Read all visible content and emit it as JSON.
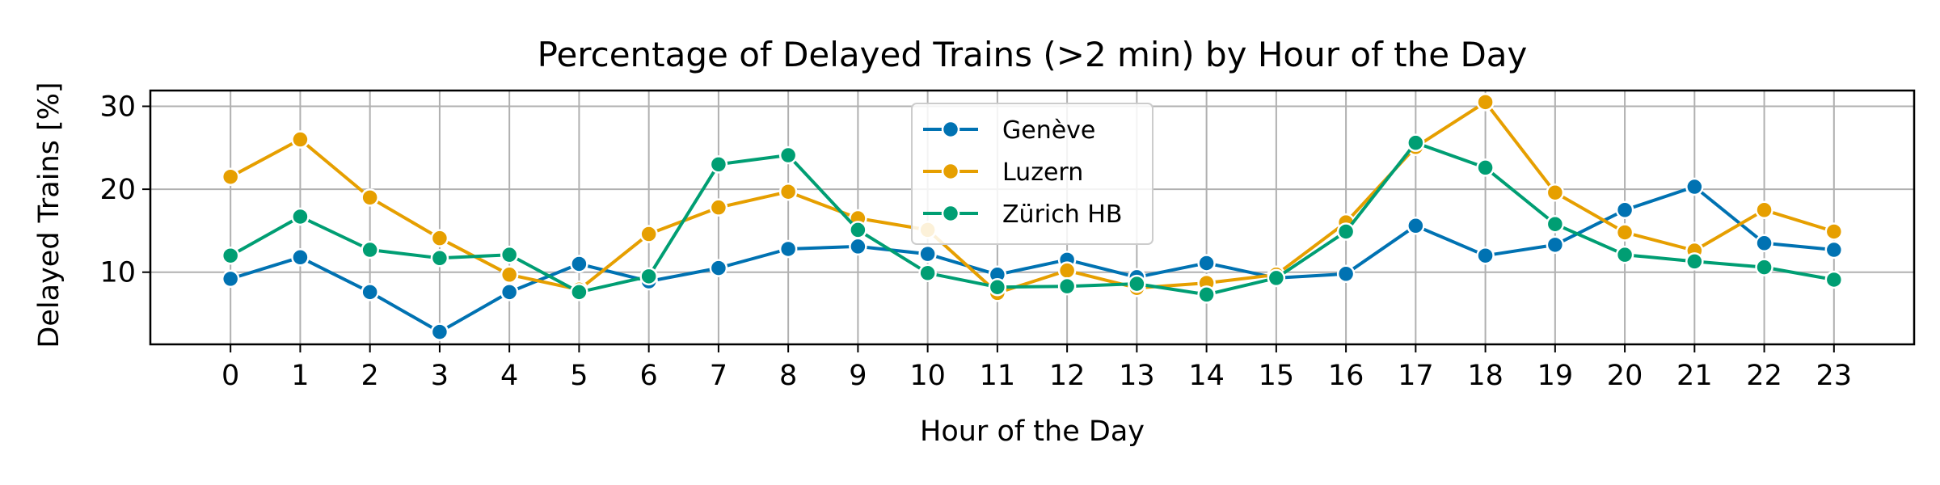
{
  "chart_data": {
    "type": "line",
    "title": "Percentage of Delayed Trains (>2 min) by Hour of the Day",
    "xlabel": "Hour of the Day",
    "ylabel": "Delayed Trains [%]",
    "x": [
      0,
      1,
      2,
      3,
      4,
      5,
      6,
      7,
      8,
      9,
      10,
      11,
      12,
      13,
      14,
      15,
      16,
      17,
      18,
      19,
      20,
      21,
      22,
      23
    ],
    "xlim": [
      -1.15,
      24.15
    ],
    "ylim": [
      1.3,
      31.9
    ],
    "yticks": [
      10,
      20,
      30
    ],
    "grid": true,
    "legend_position": "top-center",
    "series": [
      {
        "name": "Genève",
        "color": "#0072b2",
        "values": [
          9.2,
          11.8,
          7.6,
          2.8,
          7.6,
          11.0,
          8.9,
          10.5,
          12.8,
          13.1,
          12.2,
          9.7,
          11.5,
          9.4,
          11.1,
          9.3,
          9.8,
          15.6,
          12.0,
          13.3,
          17.5,
          20.3,
          13.5,
          12.7
        ]
      },
      {
        "name": "Luzern",
        "color": "#e69f00",
        "values": [
          21.5,
          26.0,
          19.0,
          14.1,
          9.7,
          7.9,
          14.6,
          17.8,
          19.7,
          16.5,
          15.1,
          7.5,
          10.2,
          8.1,
          8.7,
          9.7,
          16.0,
          25.1,
          30.5,
          19.6,
          14.8,
          12.6,
          17.5,
          14.9
        ]
      },
      {
        "name": "Zürich HB",
        "color": "#009e73",
        "values": [
          12.0,
          16.7,
          12.7,
          11.7,
          12.1,
          7.6,
          9.5,
          23.0,
          24.1,
          15.1,
          9.9,
          8.2,
          8.3,
          8.6,
          7.3,
          9.3,
          14.9,
          25.6,
          22.6,
          15.8,
          12.1,
          11.3,
          10.6,
          9.1
        ]
      }
    ]
  }
}
